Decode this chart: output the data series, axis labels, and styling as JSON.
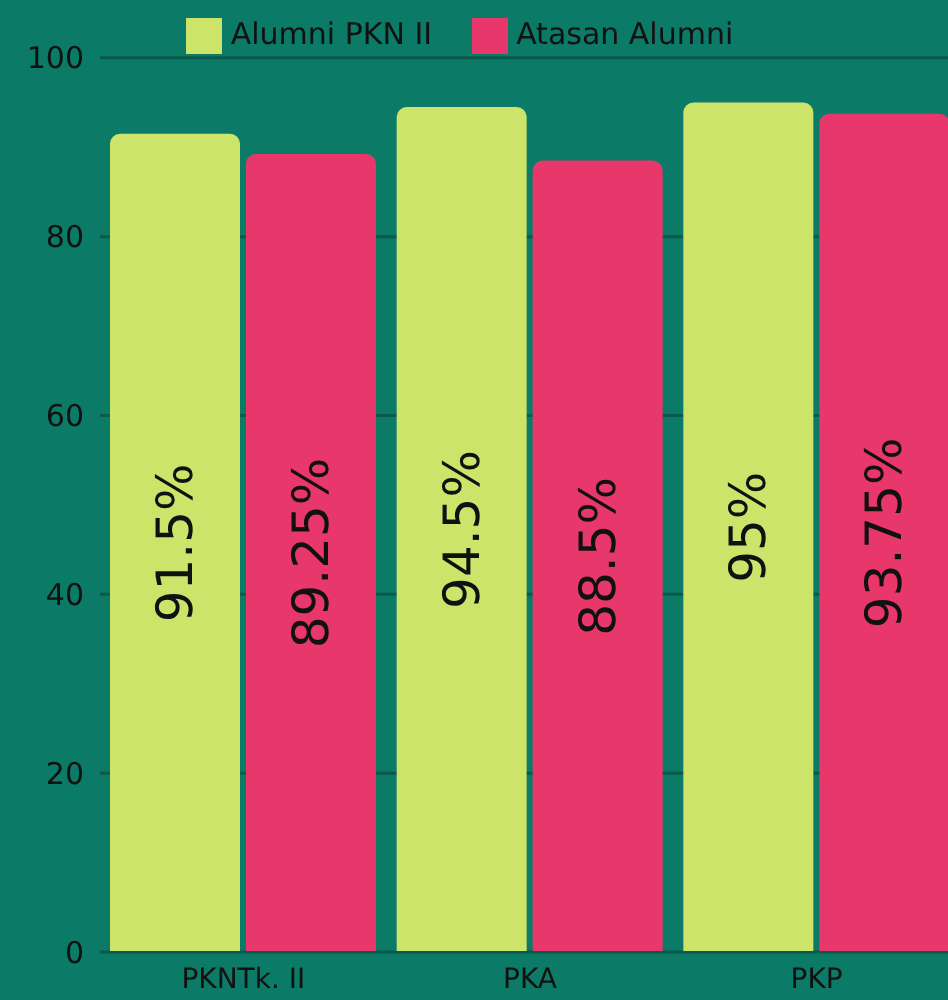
{
  "chart_data": {
    "type": "bar",
    "categories": [
      "PKNTk. II",
      "PKA",
      "PKP"
    ],
    "series": [
      {
        "name": "Alumni PKN II",
        "color": "#cde46b",
        "values": [
          91.5,
          94.5,
          95
        ],
        "value_labels": [
          "91.5%",
          "94.5%",
          "95%"
        ]
      },
      {
        "name": "Atasan Alumni",
        "color": "#e8376b",
        "values": [
          89.25,
          88.5,
          93.75
        ],
        "value_labels": [
          "89.25%",
          "88.5%",
          "93.75%"
        ]
      }
    ],
    "ylim": [
      0,
      100
    ],
    "yticks": [
      0,
      20,
      40,
      60,
      80,
      100
    ],
    "grid": "y",
    "legend": "top"
  }
}
